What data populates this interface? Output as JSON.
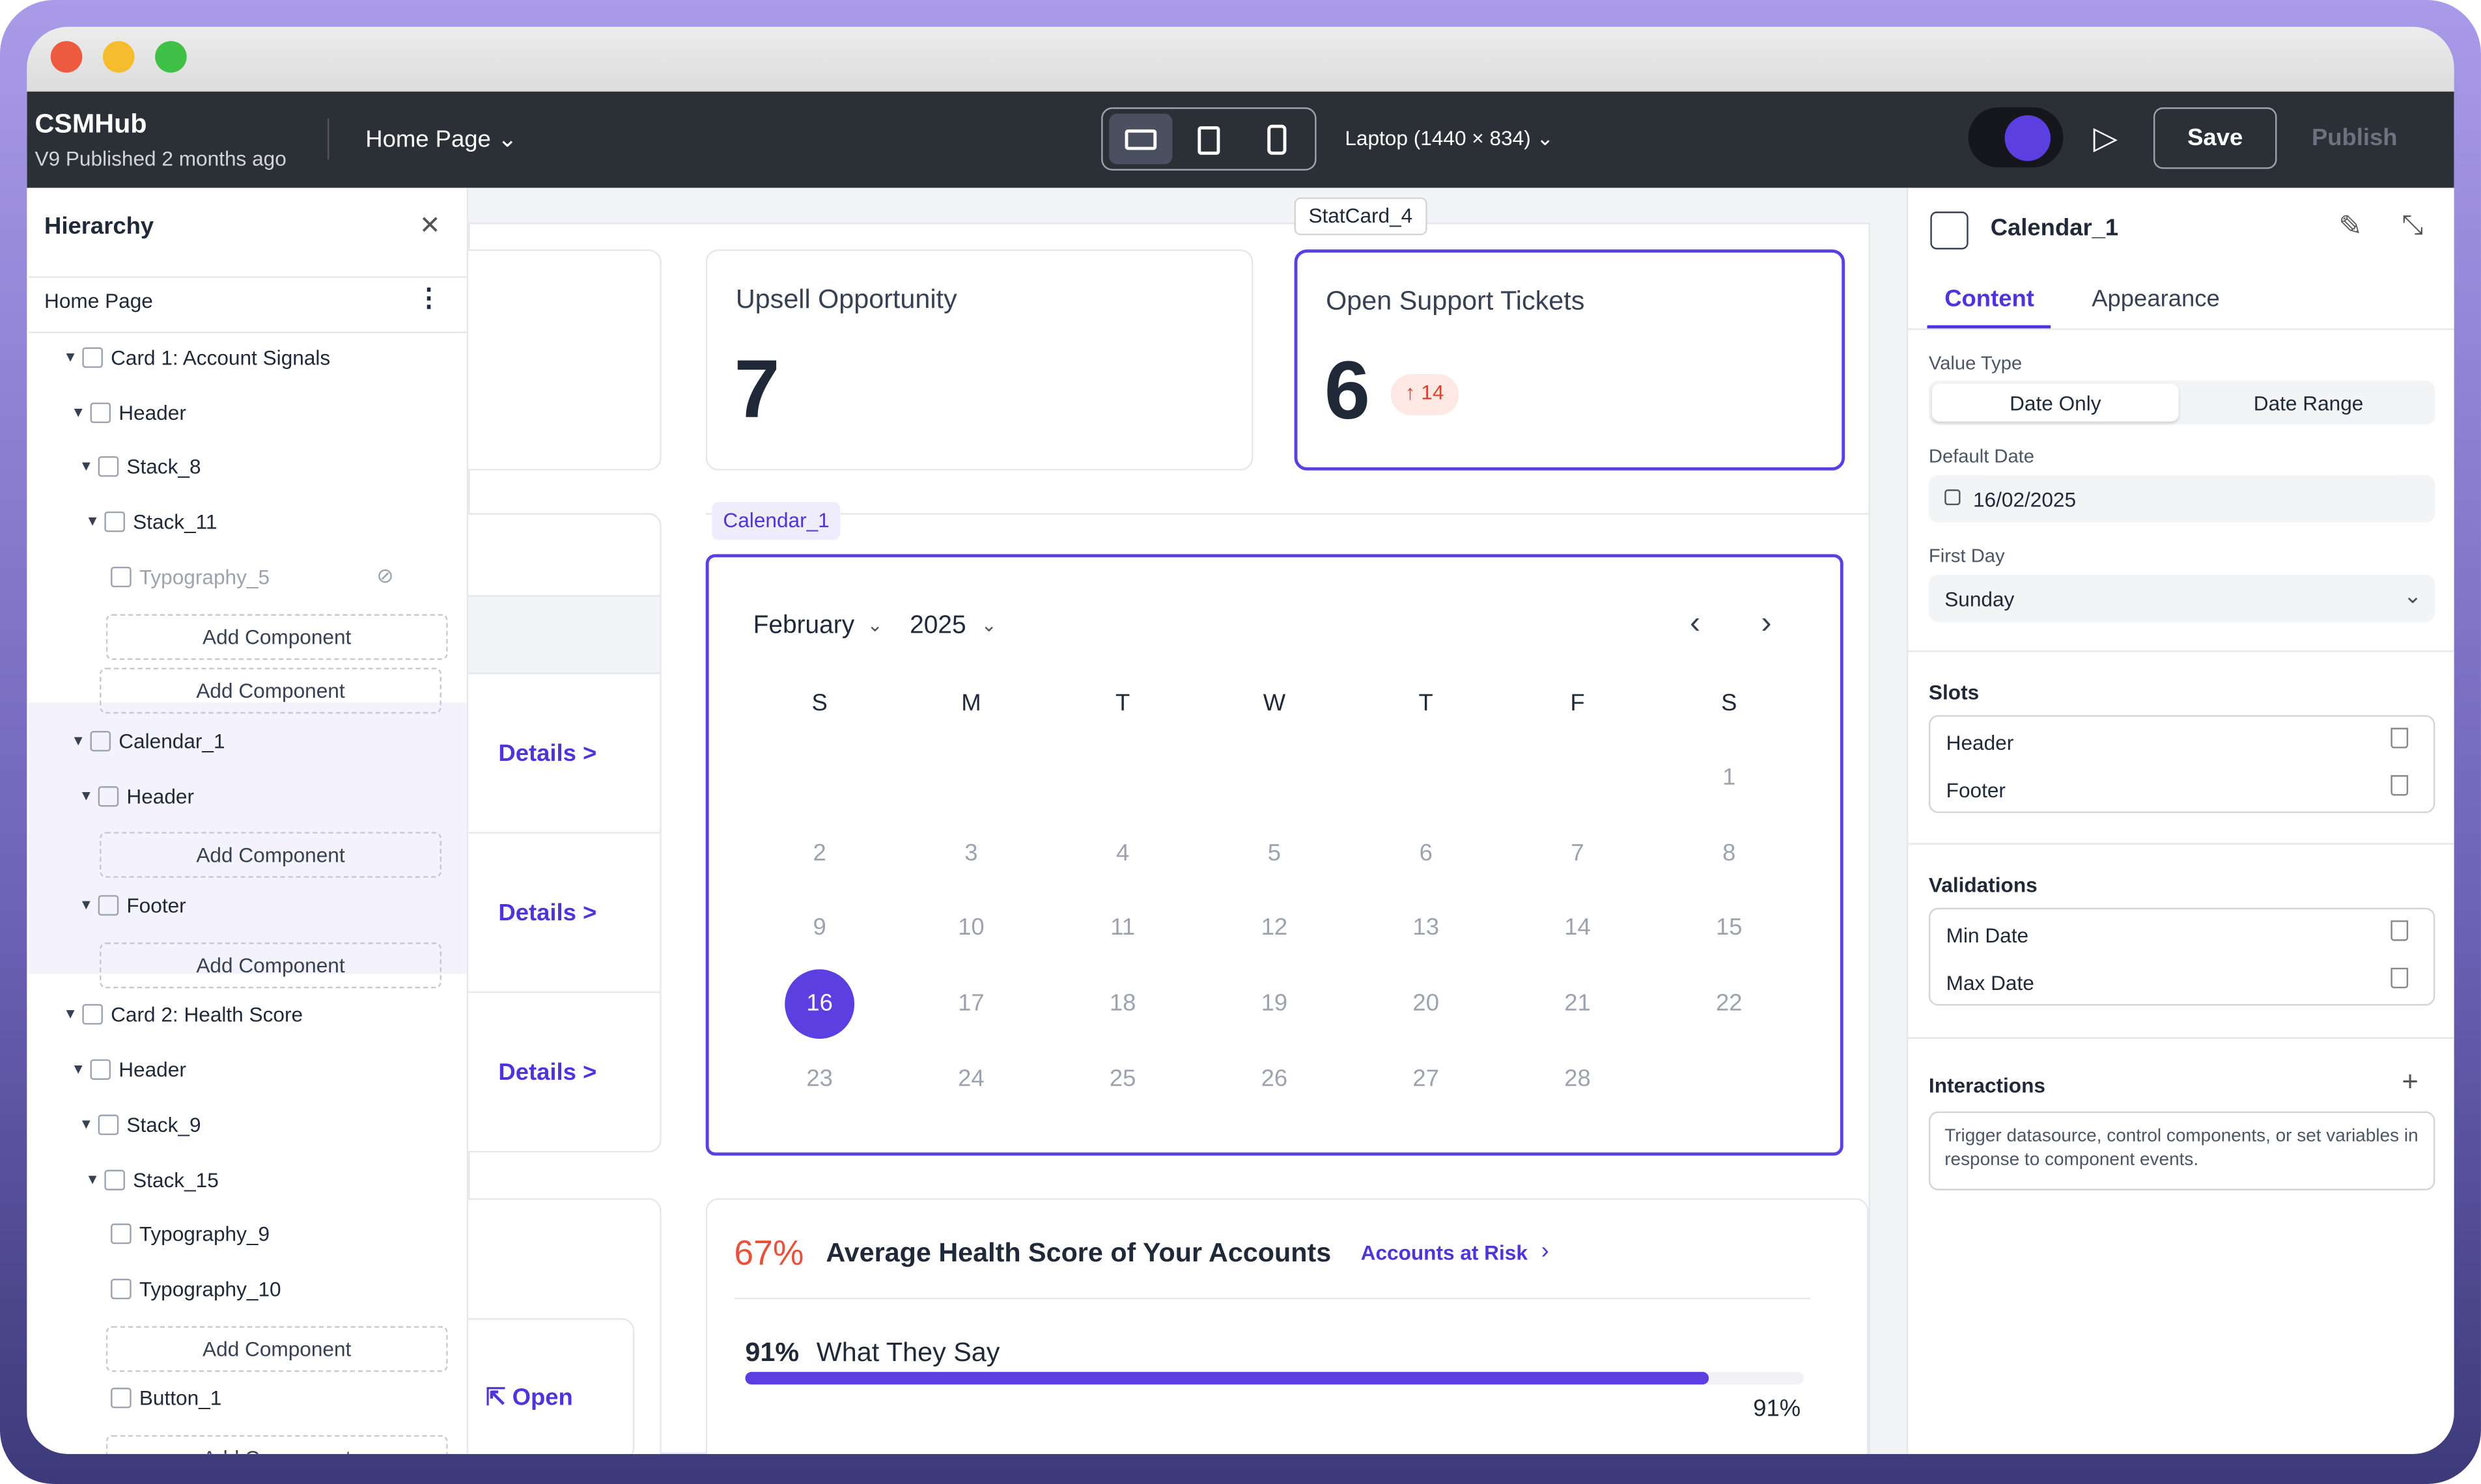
{
  "app": {
    "name": "CSMHub",
    "status": "V9 Published 2 months ago",
    "page": "Home Page",
    "device": "Laptop (1440 × 834)",
    "save": "Save",
    "publish": "Publish"
  },
  "hierarchy": {
    "title": "Hierarchy",
    "root": "Home Page",
    "items": [
      "Card 1: Account Signals",
      "Header",
      "Stack_8",
      "Stack_11",
      "Typography_5",
      "Add Component",
      "Add Component",
      "Calendar_1",
      "Header",
      "Add Component",
      "Footer",
      "Add Component",
      "Card 2: Health Score",
      "Header",
      "Stack_9",
      "Stack_15",
      "Typography_9",
      "Typography_10",
      "Add Component",
      "Button_1",
      "Add Component"
    ]
  },
  "canvas": {
    "stat_tag": "StatCard_4",
    "cards": [
      {
        "title": "Upsell Opportunity",
        "value": 7
      },
      {
        "title": "Open Support Tickets",
        "value": 6,
        "badge": 14
      }
    ],
    "links": [
      "Details >",
      "Details >",
      "Details >"
    ],
    "open": "Open",
    "calendar": {
      "tag": "Calendar_1",
      "month": "February",
      "year": "2025",
      "weekdays": [
        "S",
        "M",
        "T",
        "W",
        "T",
        "F",
        "S"
      ],
      "selected": 16,
      "weeks": [
        [
          null,
          null,
          null,
          null,
          null,
          null,
          1
        ],
        [
          2,
          3,
          4,
          5,
          6,
          7,
          8
        ],
        [
          9,
          10,
          11,
          12,
          13,
          14,
          15
        ],
        [
          16,
          17,
          18,
          19,
          20,
          21,
          22
        ],
        [
          23,
          24,
          25,
          26,
          27,
          28,
          null
        ]
      ]
    },
    "health": {
      "percent": "67%",
      "title": "Average Health Score of Your Accounts",
      "link": "Accounts at Risk",
      "metric": "91%",
      "metric_label": "What They Say",
      "bar_value": 91,
      "bar_label": "91%"
    }
  },
  "inspector": {
    "title": "Calendar_1",
    "tabs": [
      "Content",
      "Appearance"
    ],
    "value_type": {
      "label": "Value Type",
      "options": [
        "Date Only",
        "Date Range"
      ]
    },
    "default_date": {
      "label": "Default Date",
      "value": "16/02/2025"
    },
    "first_day": {
      "label": "First Day",
      "value": "Sunday"
    },
    "slots": {
      "label": "Slots",
      "items": [
        "Header",
        "Footer"
      ]
    },
    "validations": {
      "label": "Validations",
      "items": [
        "Min Date",
        "Max Date"
      ]
    },
    "interactions": {
      "label": "Interactions",
      "description": "Trigger datasource, control components, or set variables in response to component events."
    }
  }
}
